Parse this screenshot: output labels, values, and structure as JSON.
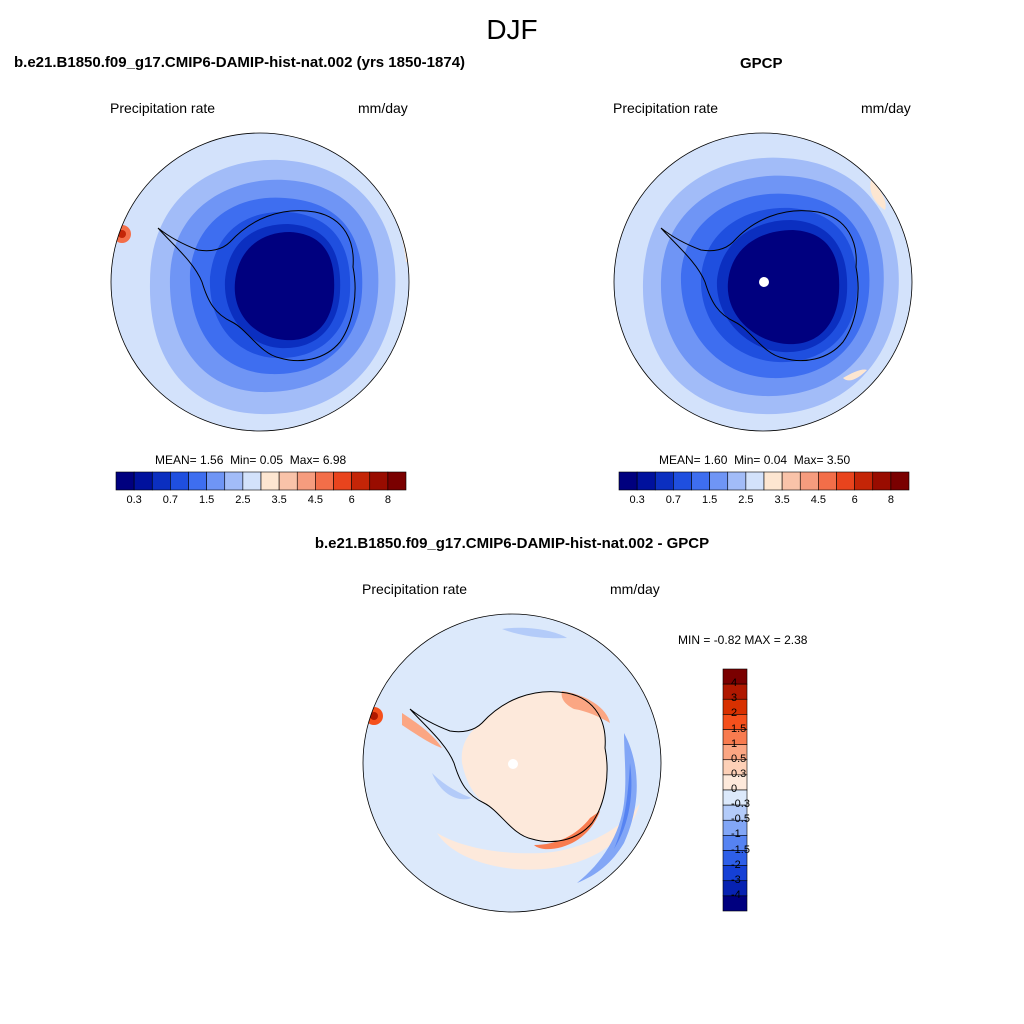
{
  "figure": {
    "season": "DJF",
    "panels": [
      {
        "title": "b.e21.B1850.f09_g17.CMIP6-DAMIP-hist-nat.002 (yrs 1850-1874)",
        "variable": "Precipitation rate",
        "units": "mm/day",
        "stats": {
          "mean_label": "MEAN=",
          "mean": "1.56",
          "min_label": "Min=",
          "min": "0.05",
          "max_label": "Max=",
          "max": "6.98"
        }
      },
      {
        "title": "GPCP",
        "variable": "Precipitation rate",
        "units": "mm/day",
        "stats": {
          "mean_label": "MEAN=",
          "mean": "1.60",
          "min_label": "Min=",
          "min": "0.04",
          "max_label": "Max=",
          "max": "3.50"
        }
      },
      {
        "title": "b.e21.B1850.f09_g17.CMIP6-DAMIP-hist-nat.002 - GPCP",
        "variable": "Precipitation rate",
        "units": "mm/day",
        "stats": {
          "min_label": "MIN =",
          "min": "-0.82",
          "max_label": "MAX =",
          "max": "2.38"
        }
      }
    ]
  },
  "chart_data": [
    {
      "type": "heatmap",
      "projection": "south-polar-stereographic",
      "title": "b.e21.B1850.f09_g17.CMIP6-DAMIP-hist-nat.002 (yrs 1850-1874)",
      "variable": "Precipitation rate",
      "units": "mm/day",
      "mean": 1.56,
      "min": 0.05,
      "max": 6.98,
      "colorbar": {
        "orientation": "horizontal",
        "levels": [
          0.3,
          0.5,
          0.7,
          1,
          1.5,
          2,
          2.5,
          3,
          3.5,
          4,
          4.5,
          5,
          6,
          7,
          8
        ],
        "tick_labels": [
          "0.3",
          "0.7",
          "1.5",
          "2.5",
          "3.5",
          "4.5",
          "6",
          "8"
        ],
        "colors": [
          "#00007f",
          "#00119d",
          "#0b2fc0",
          "#1f4fdf",
          "#3e6ef0",
          "#6f95f5",
          "#a2bcf8",
          "#d3e2fb",
          "#fde6d1",
          "#f9c3a9",
          "#f69c7e",
          "#f36e49",
          "#e9441d",
          "#c42507",
          "#990c00",
          "#7a0000"
        ]
      }
    },
    {
      "type": "heatmap",
      "projection": "south-polar-stereographic",
      "title": "GPCP",
      "variable": "Precipitation rate",
      "units": "mm/day",
      "mean": 1.6,
      "min": 0.04,
      "max": 3.5,
      "colorbar": {
        "orientation": "horizontal",
        "levels": [
          0.3,
          0.5,
          0.7,
          1,
          1.5,
          2,
          2.5,
          3,
          3.5,
          4,
          4.5,
          5,
          6,
          7,
          8
        ],
        "tick_labels": [
          "0.3",
          "0.7",
          "1.5",
          "2.5",
          "3.5",
          "4.5",
          "6",
          "8"
        ],
        "colors": [
          "#00007f",
          "#00119d",
          "#0b2fc0",
          "#1f4fdf",
          "#3e6ef0",
          "#6f95f5",
          "#a2bcf8",
          "#d3e2fb",
          "#fde6d1",
          "#f9c3a9",
          "#f69c7e",
          "#f36e49",
          "#e9441d",
          "#c42507",
          "#990c00",
          "#7a0000"
        ]
      }
    },
    {
      "type": "heatmap",
      "projection": "south-polar-stereographic",
      "title": "b.e21.B1850.f09_g17.CMIP6-DAMIP-hist-nat.002 - GPCP",
      "variable": "Precipitation rate",
      "units": "mm/day",
      "min": -0.82,
      "max": 2.38,
      "colorbar": {
        "orientation": "vertical",
        "levels": [
          4,
          3,
          2,
          1.5,
          1,
          0.5,
          0.3,
          0,
          -0.3,
          -0.5,
          -1,
          -1.5,
          -2,
          -3,
          -4
        ],
        "tick_labels": [
          "4",
          "3",
          "2",
          "1.5",
          "1",
          "0.5",
          "0.3",
          "0",
          "-0.3",
          "-0.5",
          "-1",
          "-1.5",
          "-2",
          "-3",
          "-4"
        ],
        "colors": [
          "#7a0000",
          "#b01800",
          "#d83000",
          "#f5501c",
          "#f87b4f",
          "#fba683",
          "#fdd0b7",
          "#fde9db",
          "#dce9fb",
          "#b3cbf9",
          "#82a6f6",
          "#5683f2",
          "#2e5fe8",
          "#1540d6",
          "#0722b2",
          "#00007f"
        ]
      }
    }
  ]
}
